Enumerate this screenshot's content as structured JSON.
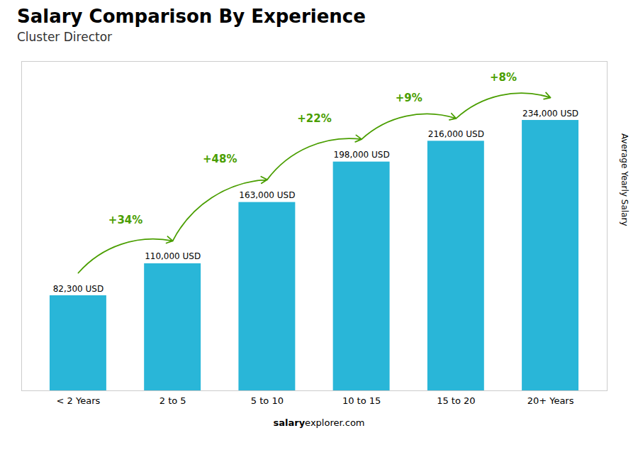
{
  "chart_data": {
    "type": "bar",
    "title": "Salary Comparison By Experience",
    "subtitle": "Cluster Director",
    "categories": [
      "< 2 Years",
      "2 to 5",
      "5 to 10",
      "10 to 15",
      "15 to 20",
      "20+ Years"
    ],
    "values": [
      82300,
      110000,
      163000,
      198000,
      216000,
      234000
    ],
    "value_labels": [
      "82,300 USD",
      "110,000 USD",
      "163,000 USD",
      "198,000 USD",
      "216,000 USD",
      "234,000 USD"
    ],
    "data_labels": true,
    "color": "#29b6d8",
    "ylabel": "Average Yearly Salary",
    "ylim": [
      0,
      285000
    ],
    "tick_labels": "x",
    "annotations": [
      "+34%",
      "+48%",
      "+22%",
      "+9%",
      "+8%"
    ],
    "caption": [
      "salary",
      "explorer.com"
    ]
  }
}
